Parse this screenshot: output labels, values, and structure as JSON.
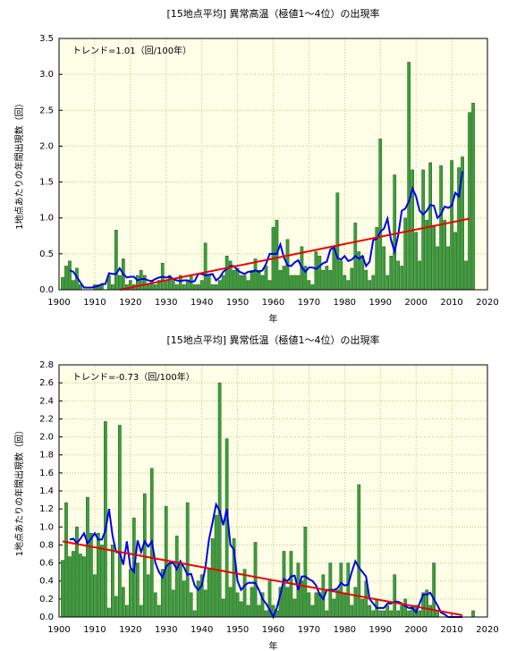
{
  "chart_data": [
    {
      "type": "bar",
      "title": "[15地点平均] 異常高温（極値1〜4位）の出現率",
      "annotation": "トレンド=1.01（回/100年）",
      "xlabel": "年",
      "ylabel": "1地点あたりの年間出現数（回）",
      "x": [
        1901,
        1902,
        1903,
        1904,
        1905,
        1906,
        1907,
        1908,
        1909,
        1910,
        1911,
        1912,
        1913,
        1914,
        1915,
        1916,
        1917,
        1918,
        1919,
        1920,
        1921,
        1922,
        1923,
        1924,
        1925,
        1926,
        1927,
        1928,
        1929,
        1930,
        1931,
        1932,
        1933,
        1934,
        1935,
        1936,
        1937,
        1938,
        1939,
        1940,
        1941,
        1942,
        1943,
        1944,
        1945,
        1946,
        1947,
        1948,
        1949,
        1950,
        1951,
        1952,
        1953,
        1954,
        1955,
        1956,
        1957,
        1958,
        1959,
        1960,
        1961,
        1962,
        1963,
        1964,
        1965,
        1966,
        1967,
        1968,
        1969,
        1970,
        1971,
        1972,
        1973,
        1974,
        1975,
        1976,
        1977,
        1978,
        1979,
        1980,
        1981,
        1982,
        1983,
        1984,
        1985,
        1986,
        1987,
        1988,
        1989,
        1990,
        1991,
        1992,
        1993,
        1994,
        1995,
        1996,
        1997,
        1998,
        1999,
        2000,
        2001,
        2002,
        2003,
        2004,
        2005,
        2006,
        2007,
        2008,
        2009,
        2010,
        2011,
        2012,
        2013,
        2014,
        2015,
        2016
      ],
      "series": [
        {
          "type": "bar",
          "color": "#3c9e3c",
          "values": [
            0.17,
            0.33,
            0.4,
            0.13,
            0.3,
            0.07,
            0,
            0,
            0,
            0.07,
            0.07,
            0.07,
            0,
            0.2,
            0.07,
            0.83,
            0.2,
            0.43,
            0.07,
            0.13,
            0.07,
            0.2,
            0.27,
            0.2,
            0.07,
            0.13,
            0.07,
            0.13,
            0.37,
            0.13,
            0.2,
            0.13,
            0.07,
            0.2,
            0.07,
            0.13,
            0.2,
            0.07,
            0.07,
            0.13,
            0.65,
            0.2,
            0.07,
            0.07,
            0.13,
            0.2,
            0.47,
            0.4,
            0.27,
            0.3,
            0.2,
            0.2,
            0.13,
            0.27,
            0.43,
            0.27,
            0.2,
            0.33,
            0.13,
            0.87,
            0.97,
            0.27,
            0.33,
            0.7,
            0.2,
            0.2,
            0.2,
            0.6,
            0.33,
            0.13,
            0.07,
            0.53,
            0.47,
            0.27,
            0.33,
            0.27,
            0.6,
            1.35,
            0.4,
            0.2,
            0.13,
            0.3,
            0.93,
            0.53,
            0.47,
            0.27,
            0.13,
            0.2,
            0.87,
            2.1,
            0.6,
            0.2,
            0.47,
            1.6,
            0.4,
            0.33,
            1.0,
            3.17,
            1.67,
            0.8,
            0.4,
            1.67,
            0.97,
            1.77,
            0.9,
            0.6,
            1.73,
            0.97,
            0.6,
            1.8,
            0.8,
            1.7,
            1.85,
            0.4,
            2.47,
            2.6
          ]
        },
        {
          "type": "line",
          "color": "#0000ee",
          "values": [
            null,
            null,
            0.27,
            0.25,
            0.18,
            0.1,
            0.03,
            0.03,
            0.03,
            0.04,
            0.05,
            0.08,
            0.08,
            0.23,
            0.22,
            0.22,
            0.3,
            0.22,
            0.17,
            0.18,
            0.18,
            0.13,
            0.15,
            0.15,
            0.13,
            0.12,
            0.15,
            0.17,
            0.18,
            0.17,
            0.18,
            0.15,
            0.13,
            0.12,
            0.13,
            0.13,
            0.11,
            0.12,
            0.22,
            0.22,
            0.2,
            0.21,
            0.22,
            0.13,
            0.17,
            0.25,
            0.29,
            0.33,
            0.33,
            0.27,
            0.24,
            0.22,
            0.25,
            0.25,
            0.27,
            0.25,
            0.27,
            0.36,
            0.5,
            0.5,
            0.5,
            0.63,
            0.45,
            0.34,
            0.33,
            0.38,
            0.41,
            0.31,
            0.25,
            0.31,
            0.31,
            0.29,
            0.33,
            0.37,
            0.39,
            0.56,
            0.59,
            0.44,
            0.42,
            0.47,
            0.4,
            0.42,
            0.47,
            0.43,
            0.47,
            0.33,
            0.39,
            0.69,
            0.71,
            0.81,
            0.85,
            0.99,
            0.69,
            0.53,
            0.76,
            1.1,
            1.13,
            1.23,
            1.41,
            1.3,
            1.1,
            1.05,
            1.1,
            1.18,
            1.17,
            1.0,
            1.05,
            1.16,
            1.14,
            1.17,
            1.35,
            1.3,
            1.65,
            null,
            null,
            null
          ]
        }
      ],
      "trend": {
        "color": "#ee0000",
        "x": [
          1917,
          2015
        ],
        "values": [
          0,
          0.99
        ]
      },
      "xlim": [
        1900,
        2020
      ],
      "xticks": [
        1900,
        1910,
        1920,
        1930,
        1940,
        1950,
        1960,
        1970,
        1980,
        1990,
        2000,
        2010,
        2020
      ],
      "ylim": [
        0,
        3.5
      ],
      "yticks": [
        {
          "value": 0,
          "label": "0.0"
        },
        {
          "value": 0.5,
          "label": "0.5"
        },
        {
          "value": 1,
          "label": "1.0"
        },
        {
          "value": 1.5,
          "label": "1.5"
        },
        {
          "value": 2,
          "label": "2.0"
        },
        {
          "value": 2.5,
          "label": "2.5"
        },
        {
          "value": 3,
          "label": "3.0"
        },
        {
          "value": 3.5,
          "label": "3.5"
        }
      ],
      "grid": true
    },
    {
      "type": "bar",
      "title": "[15地点平均] 異常低温（極値1〜4位）の出現率",
      "annotation": "トレンド=-0.73（回/100年）",
      "xlabel": "年",
      "ylabel": "1地点あたりの年間出現数（回）",
      "x": [
        1901,
        1902,
        1903,
        1904,
        1905,
        1906,
        1907,
        1908,
        1909,
        1910,
        1911,
        1912,
        1913,
        1914,
        1915,
        1916,
        1917,
        1918,
        1919,
        1920,
        1921,
        1922,
        1923,
        1924,
        1925,
        1926,
        1927,
        1928,
        1929,
        1930,
        1931,
        1932,
        1933,
        1934,
        1935,
        1936,
        1937,
        1938,
        1939,
        1940,
        1941,
        1942,
        1943,
        1944,
        1945,
        1946,
        1947,
        1948,
        1949,
        1950,
        1951,
        1952,
        1953,
        1954,
        1955,
        1956,
        1957,
        1958,
        1959,
        1960,
        1961,
        1962,
        1963,
        1964,
        1965,
        1966,
        1967,
        1968,
        1969,
        1970,
        1971,
        1972,
        1973,
        1974,
        1975,
        1976,
        1977,
        1978,
        1979,
        1980,
        1981,
        1982,
        1983,
        1984,
        1985,
        1986,
        1987,
        1988,
        1989,
        1990,
        1991,
        1992,
        1993,
        1994,
        1995,
        1996,
        1997,
        1998,
        1999,
        2000,
        2001,
        2002,
        2003,
        2004,
        2005,
        2006,
        2007,
        2008,
        2009,
        2010,
        2011,
        2012,
        2013,
        2014,
        2015,
        2016
      ],
      "series": [
        {
          "type": "bar",
          "color": "#3c9e3c",
          "values": [
            0.63,
            1.27,
            0.67,
            0.73,
            1.0,
            0.7,
            0.67,
            1.33,
            0.93,
            0.47,
            0.93,
            0.8,
            2.17,
            0.1,
            0.8,
            0.23,
            2.13,
            0.33,
            0.13,
            0.53,
            1.1,
            0.6,
            0.13,
            1.37,
            0.47,
            1.65,
            0.27,
            0.13,
            0.53,
            1.23,
            0.6,
            0.3,
            0.9,
            0.6,
            0.4,
            1.27,
            0.27,
            0.07,
            0.4,
            0.47,
            0.3,
            0.53,
            0.87,
            1.13,
            2.6,
            0.2,
            1.98,
            0.33,
            0.87,
            0.27,
            0.17,
            0.53,
            0.13,
            0.33,
            0.83,
            0.13,
            0.27,
            0.07,
            0.4,
            0.13,
            0.07,
            0.33,
            0.73,
            0.33,
            0.73,
            0.2,
            0.6,
            0.4,
            1.0,
            0.27,
            0.13,
            0.27,
            0.27,
            0.47,
            0.07,
            0.6,
            0.2,
            0.3,
            0.6,
            0.27,
            0.6,
            0.13,
            0.33,
            1.47,
            0.2,
            0.4,
            0.13,
            0.07,
            0.2,
            0.07,
            0.07,
            0.13,
            0.07,
            0.47,
            0.07,
            0.13,
            0.2,
            0.07,
            0.13,
            0.13,
            0.07,
            0.27,
            0.3,
            0.13,
            0.6,
            0.07,
            0,
            0,
            0,
            0,
            0,
            0,
            0,
            0,
            0,
            0.07
          ]
        },
        {
          "type": "line",
          "color": "#0000ee",
          "values": [
            null,
            null,
            0.86,
            0.87,
            0.82,
            0.87,
            0.93,
            0.82,
            0.87,
            0.93,
            0.86,
            0.86,
            0.96,
            1.2,
            0.9,
            0.72,
            0.72,
            0.58,
            0.84,
            0.55,
            0.5,
            0.85,
            0.72,
            0.84,
            0.78,
            0.84,
            0.6,
            0.5,
            0.44,
            0.56,
            0.6,
            0.6,
            0.53,
            0.62,
            0.55,
            0.47,
            0.48,
            0.35,
            0.3,
            0.35,
            0.55,
            0.86,
            1.05,
            1.25,
            1.18,
            1.02,
            1.2,
            0.8,
            0.75,
            0.4,
            0.3,
            0.35,
            0.38,
            0.38,
            0.38,
            0.3,
            0.2,
            0.15,
            0.08,
            0,
            0.1,
            0.25,
            0.42,
            0.4,
            0.45,
            0.46,
            0.3,
            0.45,
            0.45,
            0.42,
            0.4,
            0.35,
            0.25,
            0.2,
            0.3,
            0.3,
            0.3,
            0.32,
            0.38,
            0.35,
            0.36,
            0.5,
            0.62,
            0.55,
            0.5,
            0.45,
            0.2,
            0.15,
            0.1,
            0.1,
            0.1,
            0.15,
            0.15,
            0.17,
            0.17,
            0.15,
            0.12,
            0.1,
            0.1,
            0.05,
            0.15,
            0.25,
            0.25,
            0.27,
            0.2,
            0.13,
            0.05,
            0.03,
            0,
            0,
            0,
            0,
            0,
            null,
            null,
            null
          ]
        }
      ],
      "trend": {
        "color": "#ee0000",
        "x": [
          1901,
          2013
        ],
        "values": [
          0.84,
          0.02
        ]
      },
      "xlim": [
        1900,
        2020
      ],
      "xticks": [
        1900,
        1910,
        1920,
        1930,
        1940,
        1950,
        1960,
        1970,
        1980,
        1990,
        2000,
        2010,
        2020
      ],
      "ylim": [
        0,
        2.8
      ],
      "yticks": [
        {
          "value": 0,
          "label": "0.0"
        },
        {
          "value": 0.2,
          "label": "0.2"
        },
        {
          "value": 0.4,
          "label": "0.4"
        },
        {
          "value": 0.6,
          "label": "0.6"
        },
        {
          "value": 0.8,
          "label": "0.8"
        },
        {
          "value": 1,
          "label": "1.0"
        },
        {
          "value": 1.2,
          "label": "1.2"
        },
        {
          "value": 1.4,
          "label": "1.4"
        },
        {
          "value": 1.6,
          "label": "1.6"
        },
        {
          "value": 1.8,
          "label": "1.8"
        },
        {
          "value": 2,
          "label": "2.0"
        },
        {
          "value": 2.2,
          "label": "2.2"
        },
        {
          "value": 2.4,
          "label": "2.4"
        },
        {
          "value": 2.6,
          "label": "2.6"
        },
        {
          "value": 2.8,
          "label": "2.8"
        }
      ],
      "grid": true
    }
  ]
}
